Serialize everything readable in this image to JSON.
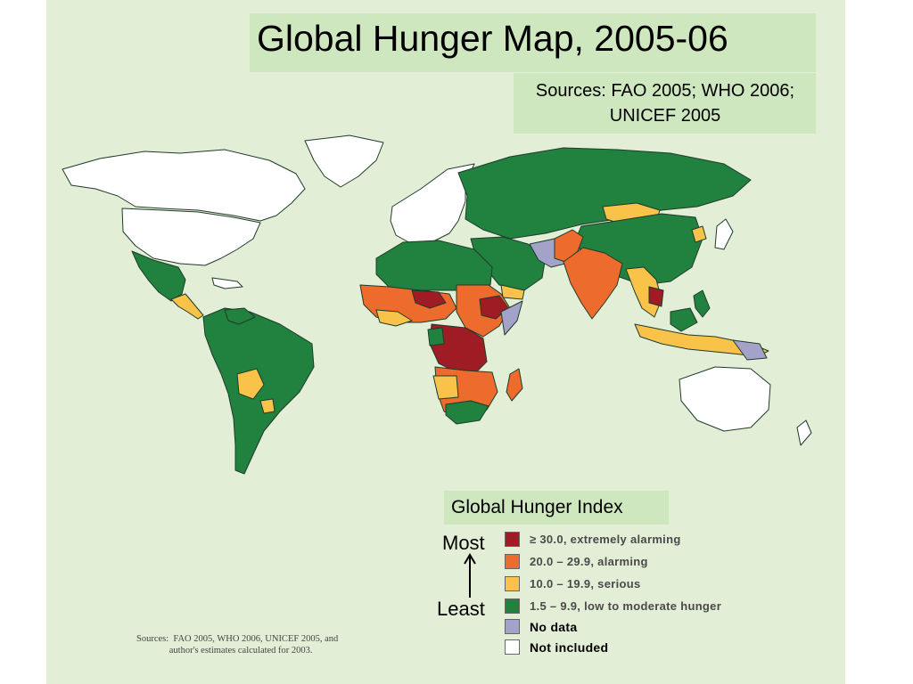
{
  "title": "Global Hunger Map, 2005-06",
  "sources": "Sources: FAO 2005; WHO 2006; UNICEF 2005",
  "legend": {
    "title": "Global Hunger Index",
    "most": "Most",
    "least": "Least",
    "items": [
      {
        "label": "≥ 30.0, extremely alarming",
        "color": "#a01c25"
      },
      {
        "label": "20.0 – 29.9, alarming",
        "color": "#ec6b2d"
      },
      {
        "label": "10.0 – 19.9, serious",
        "color": "#f9c34a"
      },
      {
        "label": "1.5 – 9.9, low to moderate hunger",
        "color": "#21813f"
      },
      {
        "label": "No data",
        "color": "#a3a2c9"
      },
      {
        "label": "Not included",
        "color": "#ffffff"
      }
    ]
  },
  "footnote": "Sources:  FAO 2005, WHO 2006, UNICEF 2005, and\n              author's estimates calculated for 2003.",
  "colors": {
    "background": "#e2efd6",
    "title_box": "#cfe7bf",
    "extremely_alarming": "#a01c25",
    "alarming": "#ec6b2d",
    "serious": "#f9c34a",
    "low_moderate": "#21813f",
    "no_data": "#a3a2c9",
    "not_included": "#ffffff"
  }
}
